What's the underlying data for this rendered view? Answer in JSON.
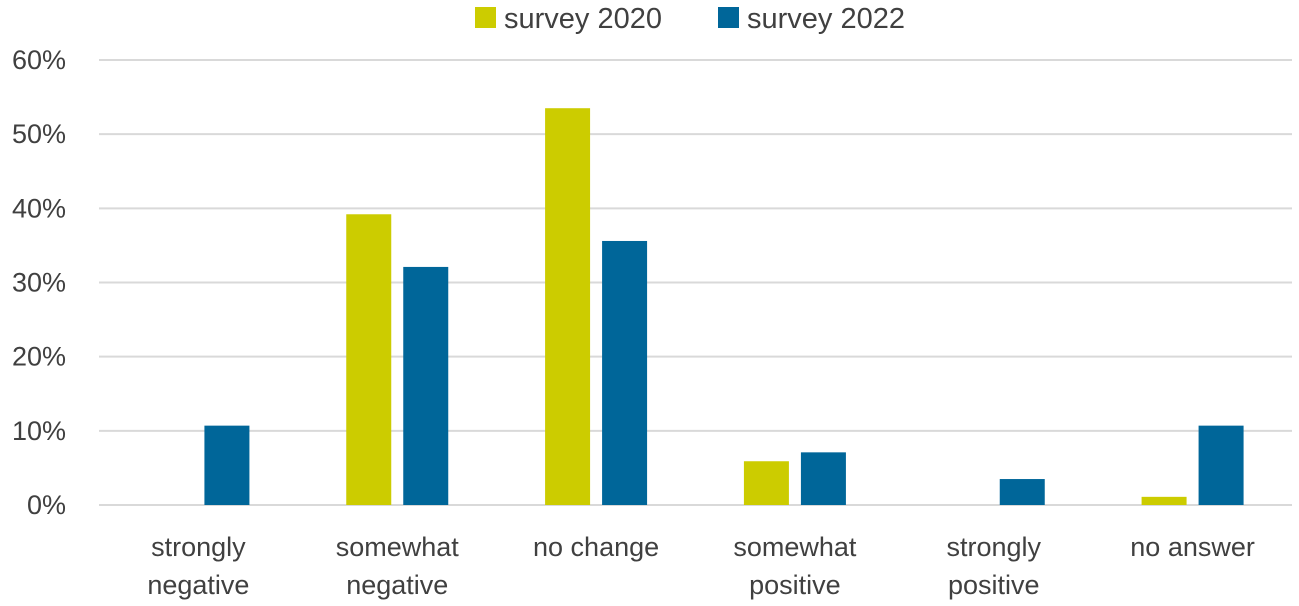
{
  "chart_data": {
    "type": "bar",
    "title": "",
    "xlabel": "",
    "ylabel": "",
    "categories": [
      [
        "strongly",
        "negative"
      ],
      [
        "somewhat",
        "negative"
      ],
      [
        "no change"
      ],
      [
        "somewhat",
        "positive"
      ],
      [
        "strongly",
        "positive"
      ],
      [
        "no answer"
      ]
    ],
    "series": [
      {
        "name": "survey 2020",
        "color": "#cccc00",
        "values": [
          0,
          39.2,
          53.5,
          5.9,
          0,
          1.1
        ]
      },
      {
        "name": "survey 2022",
        "color": "#006699",
        "values": [
          10.7,
          32.1,
          35.6,
          7.1,
          3.5,
          10.7
        ]
      }
    ],
    "ylim": [
      0,
      60
    ],
    "yticks": [
      "0%",
      "10%",
      "20%",
      "30%",
      "40%",
      "50%",
      "60%"
    ],
    "grid": true,
    "legend": "top-center"
  }
}
